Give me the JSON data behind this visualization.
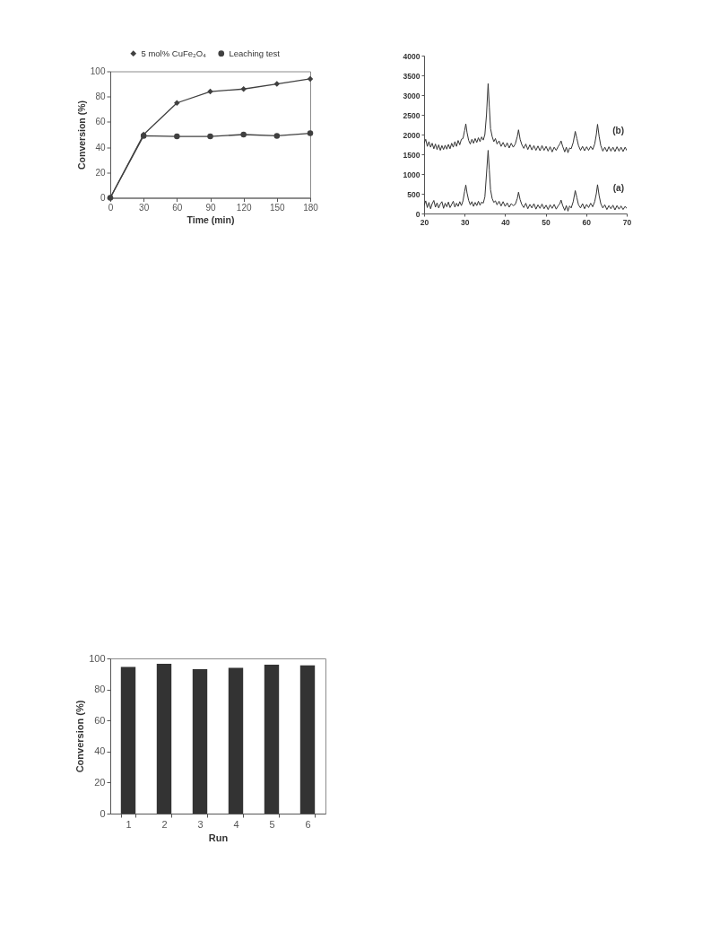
{
  "chart_data": [
    {
      "type": "line",
      "xlabel": "Time (min)",
      "ylabel": "Conversion (%)",
      "x": [
        0,
        30,
        60,
        90,
        120,
        150,
        180
      ],
      "xlim": [
        0,
        180
      ],
      "xticks": [
        0,
        30,
        60,
        90,
        120,
        150,
        180
      ],
      "ylim": [
        0,
        100
      ],
      "yticks": [
        0,
        20,
        40,
        60,
        80,
        100
      ],
      "legend": "top",
      "line_style": "solid",
      "series": [
        {
          "name": "5 mol% CuFe₂O₄",
          "color": "#404040",
          "marker": "diamond",
          "values": [
            0,
            50,
            75,
            84,
            86,
            90,
            94
          ]
        },
        {
          "name": "Leaching test",
          "color": "#404040",
          "marker": "circle",
          "values": [
            0,
            49,
            48.5,
            48.5,
            50,
            49,
            51
          ]
        }
      ]
    },
    {
      "type": "line",
      "x": [
        20,
        20.4,
        20.8,
        21.2,
        21.6,
        22,
        22.4,
        22.8,
        23.2,
        23.6,
        24,
        24.4,
        24.8,
        25.2,
        25.6,
        26,
        26.4,
        26.8,
        27.2,
        27.6,
        28,
        28.4,
        28.8,
        29.2,
        29.6,
        30,
        30.3,
        30.6,
        31,
        31.4,
        31.8,
        32.2,
        32.6,
        33,
        33.4,
        33.8,
        34.2,
        34.6,
        35,
        35.4,
        35.8,
        36.1,
        36.4,
        36.8,
        37.2,
        37.6,
        38,
        38.5,
        39,
        39.5,
        40,
        40.5,
        41,
        41.5,
        42,
        42.5,
        43,
        43.3,
        43.7,
        44.1,
        44.6,
        45.1,
        45.6,
        46.1,
        46.6,
        47.1,
        47.6,
        48.1,
        48.6,
        49.1,
        49.6,
        50.1,
        50.6,
        51.1,
        51.6,
        52.1,
        52.6,
        53.1,
        53.5,
        53.8,
        54.2,
        54.7,
        55.1,
        55.5,
        55.9,
        56.3,
        56.8,
        57.3,
        57.7,
        58.1,
        58.6,
        59.1,
        59.6,
        60.1,
        60.6,
        61.1,
        61.6,
        62.1,
        62.5,
        62.8,
        63.2,
        63.6,
        64.1,
        64.6,
        65.1,
        65.6,
        66.1,
        66.6,
        67.1,
        67.6,
        68.1,
        68.6,
        69.1,
        69.6,
        70
      ],
      "xlim": [
        20,
        70
      ],
      "xticks": [
        20,
        30,
        40,
        50,
        60,
        70
      ],
      "ylim": [
        0,
        4000
      ],
      "yticks": [
        0,
        500,
        1000,
        1500,
        2000,
        2500,
        3000,
        3500,
        4000
      ],
      "line_style": "solid",
      "marker": "none",
      "series": [
        {
          "name": "(b)",
          "color": "#333333",
          "values": [
            1780,
            1880,
            1700,
            1820,
            1680,
            1780,
            1640,
            1760,
            1620,
            1740,
            1600,
            1720,
            1620,
            1730,
            1630,
            1750,
            1640,
            1780,
            1680,
            1820,
            1700,
            1850,
            1740,
            1880,
            1900,
            2100,
            2270,
            2050,
            1850,
            1760,
            1880,
            1780,
            1900,
            1800,
            1920,
            1820,
            1940,
            1860,
            2000,
            2500,
            3290,
            2700,
            2150,
            1950,
            1820,
            1900,
            1760,
            1840,
            1700,
            1800,
            1680,
            1790,
            1660,
            1780,
            1680,
            1760,
            1950,
            2120,
            1880,
            1750,
            1650,
            1760,
            1620,
            1740,
            1610,
            1720,
            1600,
            1710,
            1590,
            1720,
            1600,
            1700,
            1580,
            1690,
            1560,
            1680,
            1600,
            1700,
            1760,
            1840,
            1700,
            1560,
            1680,
            1540,
            1660,
            1640,
            1800,
            2080,
            1900,
            1720,
            1600,
            1700,
            1590,
            1690,
            1600,
            1700,
            1620,
            1760,
            2000,
            2260,
            1950,
            1720,
            1580,
            1680,
            1570,
            1690,
            1580,
            1680,
            1570,
            1690,
            1580,
            1680,
            1570,
            1680,
            1600
          ]
        },
        {
          "name": "(a)",
          "color": "#333333",
          "values": [
            200,
            320,
            150,
            280,
            120,
            250,
            330,
            160,
            270,
            140,
            240,
            300,
            130,
            260,
            170,
            290,
            150,
            230,
            310,
            160,
            260,
            180,
            300,
            200,
            320,
            560,
            720,
            520,
            330,
            220,
            300,
            180,
            280,
            200,
            310,
            210,
            290,
            260,
            420,
            1000,
            1600,
            1100,
            600,
            380,
            280,
            320,
            220,
            310,
            190,
            300,
            180,
            270,
            160,
            250,
            200,
            230,
            380,
            540,
            350,
            230,
            150,
            260,
            120,
            230,
            140,
            250,
            110,
            220,
            130,
            240,
            120,
            210,
            100,
            220,
            130,
            230,
            110,
            200,
            250,
            340,
            200,
            80,
            200,
            60,
            190,
            140,
            300,
            580,
            400,
            220,
            140,
            250,
            120,
            230,
            150,
            260,
            170,
            300,
            500,
            730,
            450,
            250,
            140,
            220,
            100,
            200,
            120,
            210,
            90,
            200,
            110,
            190,
            100,
            180,
            130
          ]
        }
      ]
    },
    {
      "type": "bar",
      "xlabel": "Run",
      "ylabel": "Conversion (%)",
      "categories": [
        "1",
        "2",
        "3",
        "4",
        "5",
        "6"
      ],
      "values": [
        94.5,
        96.5,
        93,
        94,
        96,
        95.5
      ],
      "color": "#333333",
      "ylim": [
        0,
        100
      ],
      "yticks": [
        0,
        20,
        40,
        60,
        80,
        100
      ]
    }
  ]
}
